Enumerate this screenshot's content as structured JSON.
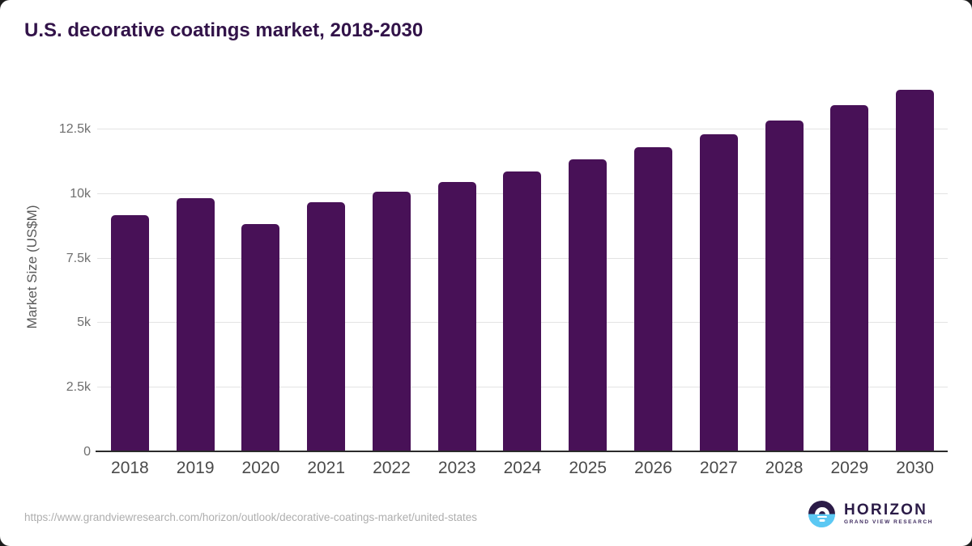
{
  "chart_data": {
    "type": "bar",
    "title": "U.S. decorative coatings market, 2018-2030",
    "xlabel": "",
    "ylabel": "Market Size (US$M)",
    "categories": [
      "2018",
      "2019",
      "2020",
      "2021",
      "2022",
      "2023",
      "2024",
      "2025",
      "2026",
      "2027",
      "2028",
      "2029",
      "2030"
    ],
    "values": [
      9180,
      9840,
      8820,
      9670,
      10100,
      10460,
      10860,
      11340,
      11800,
      12300,
      12840,
      13440,
      14030
    ],
    "ylim": [
      0,
      14380
    ],
    "y_ticks": [
      {
        "value": 0,
        "label": "0"
      },
      {
        "value": 2500,
        "label": "2.5k"
      },
      {
        "value": 5000,
        "label": "5k"
      },
      {
        "value": 7500,
        "label": "7.5k"
      },
      {
        "value": 10000,
        "label": "10k"
      },
      {
        "value": 12500,
        "label": "12.5k"
      }
    ],
    "grid": "horizontal",
    "legend": "none",
    "bar_color": "#481157"
  },
  "footer": {
    "source_url": "https://www.grandviewresearch.com/horizon/outlook/decorative-coatings-market/united-states",
    "logo_title": "HORIZON",
    "logo_subtitle": "GRAND VIEW RESEARCH"
  },
  "colors": {
    "title_text": "#321349",
    "bar": "#481157",
    "brand_purple": "#2b1b47",
    "brand_blue": "#5bc8f3",
    "gridline": "#e3e3e3",
    "axis_line": "#2b2b2b"
  }
}
